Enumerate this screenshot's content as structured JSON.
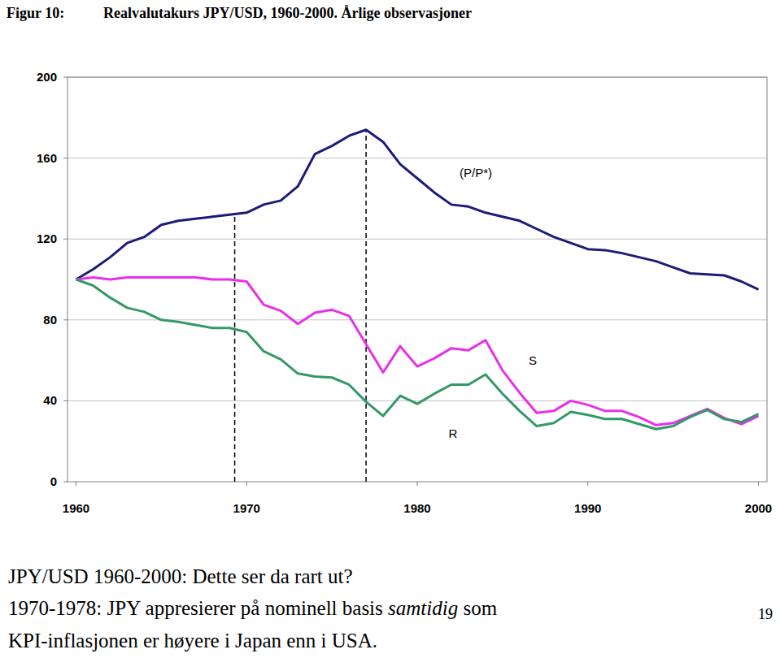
{
  "chart_data": {
    "type": "line",
    "figure_label": "Figur 10:",
    "title": "Realvalutakurs JPY/USD, 1960-2000. Årlige observasjoner",
    "x": [
      1960,
      1961,
      1962,
      1963,
      1964,
      1965,
      1966,
      1967,
      1968,
      1969,
      1970,
      1971,
      1972,
      1973,
      1974,
      1975,
      1976,
      1977,
      1978,
      1979,
      1980,
      1981,
      1982,
      1983,
      1984,
      1985,
      1986,
      1987,
      1988,
      1989,
      1990,
      1991,
      1992,
      1993,
      1994,
      1995,
      1996,
      1997,
      1998,
      1999,
      2000
    ],
    "series": [
      {
        "name": "(P/P*)",
        "color": "#1c1c78",
        "values": [
          100,
          105,
          111,
          118,
          121,
          127,
          129,
          130,
          131,
          132,
          133,
          137,
          139,
          146,
          162,
          166,
          171,
          174,
          168,
          157,
          150,
          143,
          137,
          136,
          133,
          131,
          129,
          125,
          121,
          118,
          115,
          114.5,
          113,
          111,
          109,
          106,
          103,
          102.5,
          102,
          99,
          95
        ]
      },
      {
        "name": "S",
        "color": "#e830e8",
        "values": [
          100,
          101,
          100,
          101,
          101,
          101,
          101,
          101,
          100,
          100,
          99,
          87.5,
          84.5,
          78,
          83.5,
          85,
          82,
          68,
          54,
          67,
          57,
          61,
          66,
          65,
          70,
          55,
          44,
          34,
          35,
          40,
          38,
          35,
          35,
          32,
          28,
          29,
          32.5,
          36,
          31.5,
          28.5,
          32.5
        ]
      },
      {
        "name": "R",
        "color": "#339966",
        "values": [
          100,
          97,
          91,
          86,
          84,
          80,
          79,
          77.5,
          76,
          76,
          74,
          64.5,
          60.5,
          53.5,
          52,
          51.5,
          48,
          39.5,
          32.5,
          42.5,
          38.5,
          43.5,
          48,
          48,
          53,
          43.5,
          35,
          27.5,
          29,
          34.5,
          33,
          31,
          31,
          28.5,
          26,
          27.5,
          32,
          35.5,
          31,
          29.5,
          33.5
        ]
      }
    ],
    "vlines": [
      {
        "x": 1969.3,
        "line_style": "dashed"
      },
      {
        "x": 1977,
        "line_style": "dashed"
      }
    ],
    "xlim": [
      1959.5,
      2000.5
    ],
    "xticks": [
      1960,
      1970,
      1980,
      1990,
      2000
    ],
    "ylim": [
      0,
      200
    ],
    "yticks": [
      0,
      40,
      80,
      120,
      160,
      200
    ],
    "grid": true,
    "notes": [
      [
        {
          "text": "JPY/USD 1960-2000: Dette ser da rart ut?"
        }
      ],
      [
        {
          "text": "1970-1978: JPY appresierer på nominell basis "
        },
        {
          "text": "samtidig",
          "italic": true
        },
        {
          "text": " som"
        }
      ],
      [
        {
          "text": "KPI-inflasjonen er høyere i Japan enn i USA."
        }
      ]
    ],
    "page_number": "19"
  }
}
